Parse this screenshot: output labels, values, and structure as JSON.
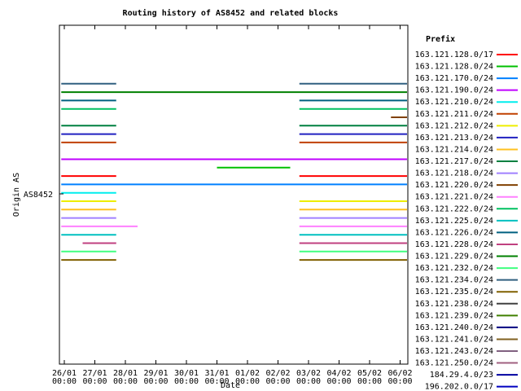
{
  "chart_data": {
    "type": "timeline",
    "title": "Routing history of AS8452 and related blocks",
    "xlabel": "Date",
    "ylabel": "Origin AS",
    "y_category": "AS8452",
    "legend_title": "Prefix",
    "x_ticks": [
      {
        "date": "26/01",
        "time": "00:00"
      },
      {
        "date": "27/01",
        "time": "00:00"
      },
      {
        "date": "28/01",
        "time": "00:00"
      },
      {
        "date": "29/01",
        "time": "00:00"
      },
      {
        "date": "30/01",
        "time": "00:00"
      },
      {
        "date": "31/01",
        "time": "00:00"
      },
      {
        "date": "01/02",
        "time": "00:00"
      },
      {
        "date": "02/02",
        "time": "00:00"
      },
      {
        "date": "03/02",
        "time": "00:00"
      },
      {
        "date": "04/02",
        "time": "00:00"
      },
      {
        "date": "05/02",
        "time": "00:00"
      },
      {
        "date": "06/02",
        "time": "00:00"
      }
    ],
    "x_range_days": [
      -0.15,
      11.3
    ],
    "series": [
      {
        "name": "163.121.128.0/17",
        "color": "#ff0000",
        "row": 17,
        "intervals": [
          [
            -0.1,
            1.7
          ],
          [
            7.7,
            11.3
          ]
        ]
      },
      {
        "name": "163.121.128.0/24",
        "color": "#00c000",
        "row": 16,
        "intervals": [
          [
            5.0,
            7.4
          ]
        ]
      },
      {
        "name": "163.121.170.0/24",
        "color": "#0080ff",
        "row": 18,
        "intervals": [
          [
            -0.1,
            11.3
          ]
        ]
      },
      {
        "name": "163.121.190.0/24",
        "color": "#c000ff",
        "row": 15,
        "intervals": [
          [
            -0.1,
            11.3
          ]
        ]
      },
      {
        "name": "163.121.210.0/24",
        "color": "#00eeee",
        "row": 19,
        "intervals": [
          [
            -0.1,
            1.7
          ]
        ]
      },
      {
        "name": "163.121.211.0/24",
        "color": "#c04000",
        "row": 13,
        "intervals": [
          [
            -0.1,
            1.7
          ],
          [
            7.7,
            11.3
          ]
        ]
      },
      {
        "name": "163.121.212.0/24",
        "color": "#eeee00",
        "row": 20,
        "intervals": [
          [
            -0.1,
            1.7
          ],
          [
            7.7,
            11.3
          ]
        ]
      },
      {
        "name": "163.121.213.0/24",
        "color": "#2020c0",
        "row": 12,
        "intervals": [
          [
            -0.1,
            1.7
          ],
          [
            7.7,
            11.3
          ]
        ]
      },
      {
        "name": "163.121.214.0/24",
        "color": "#ffc020",
        "row": 21,
        "intervals": [
          [
            -0.1,
            1.7
          ],
          [
            7.7,
            11.3
          ]
        ]
      },
      {
        "name": "163.121.217.0/24",
        "color": "#008040",
        "row": 11,
        "intervals": [
          [
            -0.1,
            1.7
          ],
          [
            7.7,
            11.3
          ]
        ]
      },
      {
        "name": "163.121.218.0/24",
        "color": "#a080ff",
        "row": 22,
        "intervals": [
          [
            -0.1,
            1.7
          ],
          [
            7.7,
            11.3
          ]
        ]
      },
      {
        "name": "163.121.220.0/24",
        "color": "#804000",
        "row": 10,
        "intervals": [
          [
            10.7,
            11.3
          ]
        ]
      },
      {
        "name": "163.121.221.0/24",
        "color": "#ff80ff",
        "row": 23,
        "intervals": [
          [
            -0.1,
            2.4
          ],
          [
            7.7,
            11.3
          ]
        ]
      },
      {
        "name": "163.121.222.0/24",
        "color": "#00c060",
        "row": 9,
        "intervals": [
          [
            -0.1,
            1.7
          ],
          [
            7.7,
            11.3
          ]
        ]
      },
      {
        "name": "163.121.225.0/24",
        "color": "#00c0c0",
        "row": 24,
        "intervals": [
          [
            -0.1,
            1.7
          ],
          [
            7.7,
            11.3
          ]
        ]
      },
      {
        "name": "163.121.226.0/24",
        "color": "#006080",
        "row": 8,
        "intervals": [
          [
            -0.1,
            1.7
          ],
          [
            7.7,
            11.3
          ]
        ]
      },
      {
        "name": "163.121.228.0/24",
        "color": "#c04080",
        "row": 25,
        "intervals": [
          [
            0.6,
            1.7
          ],
          [
            7.7,
            11.3
          ]
        ]
      },
      {
        "name": "163.121.229.0/24",
        "color": "#008000",
        "row": 7,
        "intervals": [
          [
            -0.1,
            11.3
          ]
        ]
      },
      {
        "name": "163.121.232.0/24",
        "color": "#40ff80",
        "row": 26,
        "intervals": [
          [
            -0.1,
            1.7
          ],
          [
            7.7,
            11.3
          ]
        ]
      },
      {
        "name": "163.121.234.0/24",
        "color": "#306080",
        "row": 6,
        "intervals": [
          [
            -0.1,
            1.7
          ],
          [
            7.7,
            11.3
          ]
        ]
      },
      {
        "name": "163.121.235.0/24",
        "color": "#806000",
        "row": 27,
        "intervals": [
          [
            -0.1,
            1.7
          ],
          [
            7.7,
            11.3
          ]
        ]
      },
      {
        "name": "163.121.238.0/24",
        "color": "#404040",
        "row": 5,
        "intervals": []
      },
      {
        "name": "163.121.239.0/24",
        "color": "#408000",
        "row": 4,
        "intervals": []
      },
      {
        "name": "163.121.240.0/24",
        "color": "#000080",
        "row": 3,
        "intervals": []
      },
      {
        "name": "163.121.241.0/24",
        "color": "#806020",
        "row": 2,
        "intervals": []
      },
      {
        "name": "163.121.243.0/24",
        "color": "#806080",
        "row": 1,
        "intervals": []
      },
      {
        "name": "163.121.250.0/24",
        "color": "#a06080",
        "row": 0,
        "intervals": []
      },
      {
        "name": "184.29.4.0/23",
        "color": "#0000a0",
        "row": -1,
        "intervals": []
      },
      {
        "name": "196.202.0.0/17",
        "color": "#0000c0",
        "row": -2,
        "intervals": []
      }
    ],
    "grid": false,
    "legend_position": "right"
  }
}
